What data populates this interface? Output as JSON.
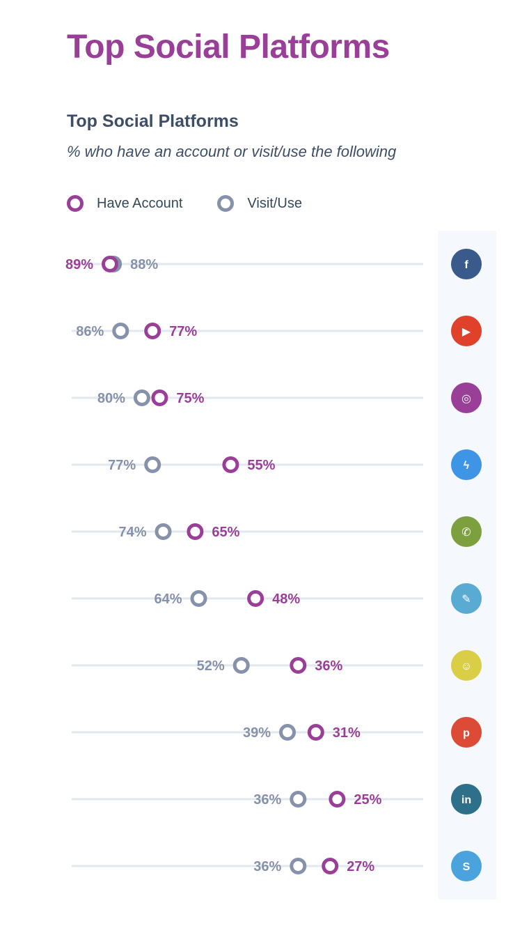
{
  "header": {
    "title": "Top Social Platforms"
  },
  "chart_data": {
    "type": "dumbbell",
    "title": "Top Social Platforms",
    "subtitle": "% who have an account or visit/use the following",
    "legend": [
      "Have Account",
      "Visit/Use"
    ],
    "legend_placement": "top-left",
    "series": [
      {
        "name": "Have Account",
        "values": [
          89,
          77,
          75,
          55,
          65,
          48,
          36,
          31,
          25,
          27
        ]
      },
      {
        "name": "Visit/Use",
        "values": [
          88,
          86,
          80,
          77,
          74,
          64,
          52,
          39,
          36,
          36
        ]
      }
    ],
    "labels": {
      "have": [
        "89%",
        "77%",
        "75%",
        "55%",
        "65%",
        "48%",
        "36%",
        "31%",
        "25%",
        "27%"
      ],
      "visit": [
        "88%",
        "86%",
        "80%",
        "77%",
        "74%",
        "64%",
        "52%",
        "39%",
        "36%",
        "36%"
      ]
    },
    "grid": true
  },
  "platform_icons": [
    {
      "icon": "facebook-icon",
      "color": "#3b5a8c",
      "glyph": "f"
    },
    {
      "icon": "youtube-icon",
      "color": "#e0412b",
      "glyph": "▶"
    },
    {
      "icon": "instagram-icon",
      "color": "#9a3f97",
      "glyph": "◎"
    },
    {
      "icon": "messenger-icon",
      "color": "#3f95e5",
      "glyph": "ϟ"
    },
    {
      "icon": "whatsapp-icon",
      "color": "#7da03e",
      "glyph": "✆"
    },
    {
      "icon": "twitter-icon",
      "color": "#59abd3",
      "glyph": "✎"
    },
    {
      "icon": "snapchat-icon",
      "color": "#d9ce46",
      "glyph": "☺"
    },
    {
      "icon": "pinterest-icon",
      "color": "#db4b36",
      "glyph": "p"
    },
    {
      "icon": "linkedin-icon",
      "color": "#2e7089",
      "glyph": "in"
    },
    {
      "icon": "skype-icon",
      "color": "#4aa3dc",
      "glyph": "S"
    }
  ],
  "colors": {
    "have": "#9a3f97",
    "visit": "#8691aa",
    "grid": "#e2e8f0",
    "text": "#33475b"
  }
}
